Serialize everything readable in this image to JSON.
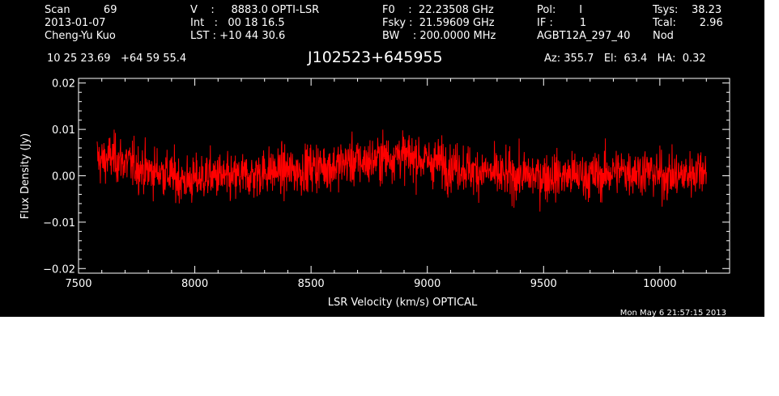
{
  "header": {
    "col1": [
      "Scan          69",
      "2013-01-07",
      "Cheng-Yu Kuo"
    ],
    "col2": [
      "V    :     8883.0 OPTI-LSR",
      "Int   :   00 18 16.5",
      "LST : +10 44 30.6"
    ],
    "col3": [
      "F0    :  22.23508 GHz",
      "Fsky :  21.59609 GHz",
      "BW    : 200.0000 MHz"
    ],
    "col4": [
      "Pol:       I",
      "IF :        1",
      "AGBT12A_297_40"
    ],
    "col5": [
      "Tsys:    38.23",
      "Tcal:       2.96",
      "Nod"
    ],
    "coords": "10 25 23.69   +64 59 55.4",
    "source": "J102523+645955",
    "azel": "Az: 355.7   El:  63.4   HA:  0.32",
    "timestamp": "Mon May  6 21:57:15 2013"
  },
  "chart_data": {
    "type": "line",
    "xlabel": "LSR Velocity (km/s) OPTICAL",
    "ylabel": "Flux Density (Jy)",
    "xlim": [
      7500,
      10300
    ],
    "ylim": [
      -0.021,
      0.021
    ],
    "xticks": [
      7500,
      8000,
      8500,
      9000,
      9500,
      10000
    ],
    "xtick_labels": [
      "7500",
      "8000",
      "8500",
      "9000",
      "9500",
      "10000"
    ],
    "yticks": [
      -0.02,
      -0.01,
      0.0,
      0.01,
      0.02
    ],
    "ytick_labels": [
      "−0.02",
      "−0.01",
      "0.00",
      "0.01",
      "0.02"
    ],
    "line_color": "#ff0000",
    "series": [
      {
        "x": [
          7580,
          7600,
          7640,
          7700,
          7750,
          7800,
          7850,
          7900,
          7950,
          8000,
          8050,
          8100,
          8150,
          8200,
          8250,
          8300,
          8350,
          8400,
          8450,
          8500,
          8550,
          8600,
          8650,
          8700,
          8750,
          8800,
          8850,
          8880,
          8900,
          8950,
          9000,
          9050,
          9100,
          9150,
          9200,
          9250,
          9300,
          9350,
          9400,
          9450,
          9500,
          9550,
          9600,
          9650,
          9700,
          9750,
          9800,
          9850,
          9900,
          9950,
          10000,
          10050,
          10100,
          10150,
          10200
        ],
        "y": [
          0.004,
          0.003,
          0.004,
          0.003,
          0.002,
          0.001,
          0.001,
          0.0,
          -0.001,
          -0.001,
          0.0,
          0.0,
          -0.001,
          0.0,
          0.0,
          0.001,
          0.001,
          0.001,
          0.001,
          0.002,
          0.002,
          0.002,
          0.003,
          0.003,
          0.003,
          0.004,
          0.004,
          0.005,
          0.004,
          0.004,
          0.003,
          0.003,
          0.002,
          0.002,
          0.001,
          0.001,
          0.0,
          0.0,
          0.0,
          0.0,
          0.0,
          0.0,
          0.0,
          0.0,
          0.0,
          0.0,
          0.001,
          0.001,
          0.001,
          0.001,
          0.0,
          0.0,
          0.0,
          0.001,
          0.002
        ]
      }
    ]
  }
}
